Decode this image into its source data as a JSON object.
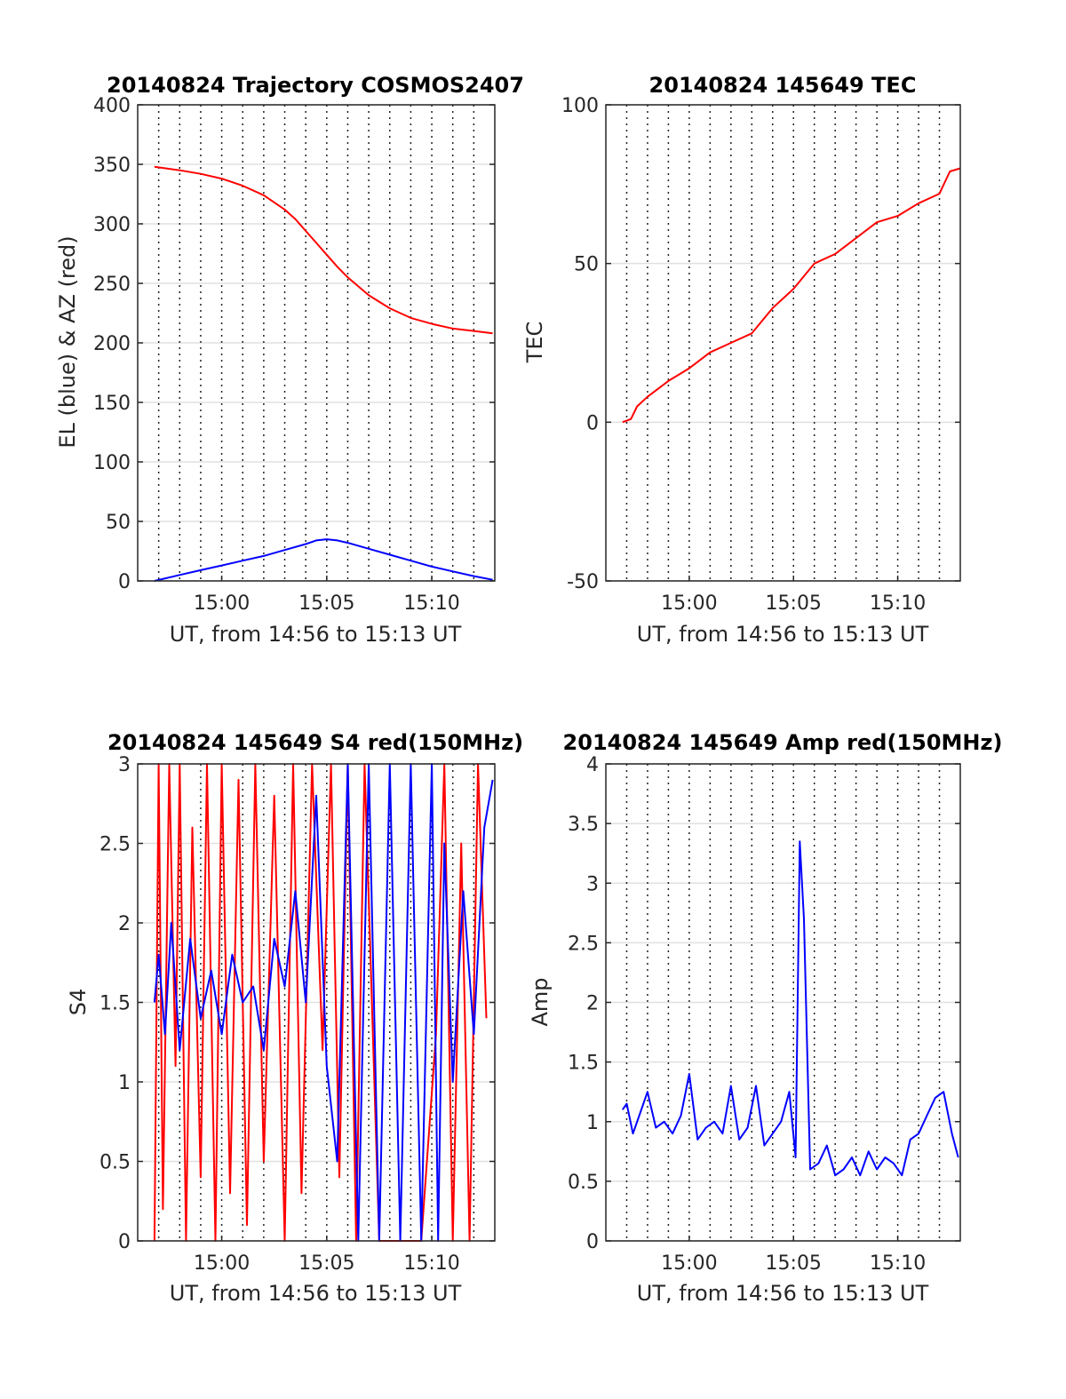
{
  "chart_data": [
    {
      "type": "line",
      "title": "20140824 Trajectory COSMOS2407",
      "xlabel": "UT, from 14:56 to 15:13 UT",
      "ylabel": "EL (blue) & AZ (red)",
      "xlim_minutes": [
        896,
        913
      ],
      "x_tick_values": [
        900,
        905,
        910
      ],
      "x_tick_labels": [
        "15:00",
        "15:05",
        "15:10"
      ],
      "ylim": [
        0,
        400
      ],
      "y_ticks": [
        0,
        50,
        100,
        150,
        200,
        250,
        300,
        350,
        400
      ],
      "y_tick_labels": [
        "0",
        "50",
        "100",
        "150",
        "200",
        "250",
        "300",
        "350",
        "400"
      ],
      "grid": true,
      "series": [
        {
          "color": "#ff0000",
          "x": [
            896.8,
            898,
            899,
            900,
            901,
            902,
            903,
            903.5,
            904,
            904.5,
            905,
            905.5,
            906,
            907,
            908,
            909,
            910,
            911,
            912,
            912.9
          ],
          "values": [
            348,
            345,
            342,
            338,
            332,
            324,
            312,
            304,
            294,
            284,
            274,
            264,
            255,
            240,
            229,
            221,
            216,
            212,
            210,
            208
          ]
        },
        {
          "color": "#0000ff",
          "x": [
            896.8,
            898,
            899,
            900,
            901,
            902,
            903,
            904,
            904.5,
            905,
            905.5,
            906,
            907,
            908,
            909,
            910,
            911,
            912,
            912.9
          ],
          "values": [
            0,
            5,
            9,
            13,
            17,
            21,
            26,
            31,
            34,
            35,
            34,
            32,
            27,
            22,
            17,
            12,
            8,
            4,
            1
          ]
        }
      ]
    },
    {
      "type": "line",
      "title": "20140824 145649 TEC",
      "xlabel": "UT, from 14:56 to 15:13 UT",
      "ylabel": "TEC",
      "xlim_minutes": [
        896,
        913
      ],
      "x_tick_values": [
        900,
        905,
        910
      ],
      "x_tick_labels": [
        "15:00",
        "15:05",
        "15:10"
      ],
      "ylim": [
        -50,
        100
      ],
      "y_ticks": [
        -50,
        0,
        50,
        100
      ],
      "y_tick_labels": [
        "-50",
        "0",
        "50",
        "100"
      ],
      "grid": true,
      "series": [
        {
          "color": "#ff0000",
          "x": [
            896.8,
            897.2,
            897.5,
            898,
            899,
            900,
            901,
            902,
            903,
            904,
            905,
            906,
            907,
            908,
            909,
            910,
            911,
            912,
            912.5,
            913
          ],
          "values": [
            0,
            1,
            5,
            8,
            13,
            17,
            22,
            25,
            28,
            36,
            42,
            50,
            53,
            58,
            63,
            65,
            69,
            72,
            79,
            80
          ]
        }
      ]
    },
    {
      "type": "line",
      "title": "20140824 145649 S4 red(150MHz)",
      "xlabel": "UT, from 14:56 to 15:13 UT",
      "ylabel": "S4",
      "xlim_minutes": [
        896,
        913
      ],
      "x_tick_values": [
        900,
        905,
        910
      ],
      "x_tick_labels": [
        "15:00",
        "15:05",
        "15:10"
      ],
      "ylim": [
        0,
        3
      ],
      "y_ticks": [
        0,
        0.5,
        1,
        1.5,
        2,
        2.5,
        3
      ],
      "y_tick_labels": [
        "0",
        "0.5",
        "1",
        "1.5",
        "2",
        "2.5",
        "3"
      ],
      "grid": true,
      "series": [
        {
          "color": "#ff0000",
          "x": [
            896.8,
            897,
            897.2,
            897.5,
            897.8,
            898,
            898.3,
            898.6,
            899,
            899.3,
            899.7,
            900,
            900.4,
            900.8,
            901.2,
            901.6,
            902,
            902.5,
            903,
            903.4,
            903.8,
            904.3,
            904.8,
            905.2,
            905.6,
            906,
            906.4,
            906.8,
            907.5,
            908.5,
            909.5,
            910.2,
            910.6,
            911,
            911.4,
            911.8,
            912.2,
            912.6
          ],
          "values": [
            0,
            3,
            0.2,
            3,
            1.1,
            3,
            0,
            2.6,
            0.4,
            3,
            0,
            3,
            0.3,
            2.9,
            0.1,
            3,
            0.5,
            2.8,
            0,
            3,
            0.3,
            3,
            1.2,
            3,
            0.4,
            3,
            0,
            3,
            0,
            0,
            0,
            1.3,
            3,
            0,
            2.5,
            0,
            3,
            1.4
          ]
        },
        {
          "color": "#0000ff",
          "x": [
            896.8,
            897,
            897.3,
            897.6,
            898,
            898.5,
            899,
            899.5,
            900,
            900.5,
            901,
            901.5,
            902,
            902.5,
            903,
            903.5,
            904,
            904.5,
            905,
            905.5,
            906,
            906.5,
            907,
            907.5,
            908,
            908.5,
            909,
            909.5,
            910,
            910.3,
            910.6,
            911,
            911.5,
            912,
            912.5,
            912.9
          ],
          "values": [
            1.5,
            1.8,
            1.3,
            2.0,
            1.2,
            1.9,
            1.4,
            1.7,
            1.3,
            1.8,
            1.5,
            1.6,
            1.2,
            1.9,
            1.6,
            2.2,
            1.5,
            2.8,
            1.1,
            0.5,
            3,
            0,
            3,
            0,
            3,
            0,
            3,
            0,
            3,
            0,
            2.5,
            1.0,
            2.2,
            1.3,
            2.6,
            2.9
          ]
        }
      ]
    },
    {
      "type": "line",
      "title": "20140824 145649 Amp red(150MHz)",
      "xlabel": "UT, from 14:56 to 15:13 UT",
      "ylabel": "Amp",
      "xlim_minutes": [
        896,
        913
      ],
      "x_tick_values": [
        900,
        905,
        910
      ],
      "x_tick_labels": [
        "15:00",
        "15:05",
        "15:10"
      ],
      "ylim": [
        0,
        4
      ],
      "y_ticks": [
        0,
        0.5,
        1,
        1.5,
        2,
        2.5,
        3,
        3.5,
        4
      ],
      "y_tick_labels": [
        "0",
        "0.5",
        "1",
        "1.5",
        "2",
        "2.5",
        "3",
        "3.5",
        "4"
      ],
      "grid": true,
      "series": [
        {
          "color": "#0000ff",
          "x": [
            896.8,
            897.0,
            897.3,
            897.6,
            898.0,
            898.4,
            898.8,
            899.2,
            899.6,
            900.0,
            900.4,
            900.8,
            901.2,
            901.6,
            902.0,
            902.4,
            902.8,
            903.2,
            903.6,
            904.0,
            904.4,
            904.8,
            905.1,
            905.3,
            905.5,
            905.8,
            906.2,
            906.6,
            907.0,
            907.4,
            907.8,
            908.2,
            908.6,
            909.0,
            909.4,
            909.8,
            910.2,
            910.6,
            911.0,
            911.4,
            911.8,
            912.2,
            912.6,
            912.9
          ],
          "values": [
            1.1,
            1.15,
            0.9,
            1.05,
            1.25,
            0.95,
            1.0,
            0.9,
            1.05,
            1.4,
            0.85,
            0.95,
            1.0,
            0.9,
            1.3,
            0.85,
            0.95,
            1.3,
            0.8,
            0.9,
            1.0,
            1.25,
            0.7,
            3.35,
            2.7,
            0.6,
            0.65,
            0.8,
            0.55,
            0.6,
            0.7,
            0.55,
            0.75,
            0.6,
            0.7,
            0.65,
            0.55,
            0.85,
            0.9,
            1.05,
            1.2,
            1.25,
            0.9,
            0.7
          ]
        }
      ]
    }
  ]
}
